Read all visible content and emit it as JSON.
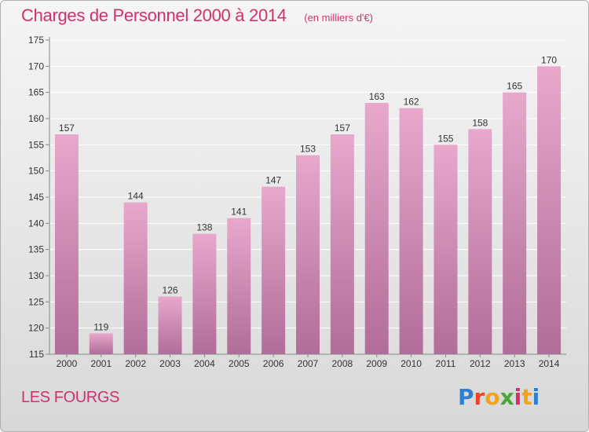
{
  "header": {
    "title": "Charges de Personnel 2000 à 2014",
    "subtitle": "(en milliers d'€)"
  },
  "footer": {
    "location": "LES FOURGS",
    "brand": "Proxiti"
  },
  "colors": {
    "title": "#d1306e",
    "bar_top": "#e8a8cc",
    "bar_bottom": "#b06d98",
    "grid": "#ffffff"
  },
  "chart_data": {
    "type": "bar",
    "title": "Charges de Personnel 2000 à 2014",
    "subtitle": "(en milliers d'€)",
    "xlabel": "",
    "ylabel": "",
    "categories": [
      "2000",
      "2001",
      "2002",
      "2003",
      "2004",
      "2005",
      "2006",
      "2007",
      "2008",
      "2009",
      "2010",
      "2011",
      "2012",
      "2013",
      "2014"
    ],
    "values": [
      157,
      119,
      144,
      126,
      138,
      141,
      147,
      153,
      157,
      163,
      162,
      155,
      158,
      165,
      170
    ],
    "ylim": [
      115,
      175
    ],
    "yticks": [
      115,
      120,
      125,
      130,
      135,
      140,
      145,
      150,
      155,
      160,
      165,
      170,
      175
    ],
    "grid": true,
    "legend": "none"
  }
}
